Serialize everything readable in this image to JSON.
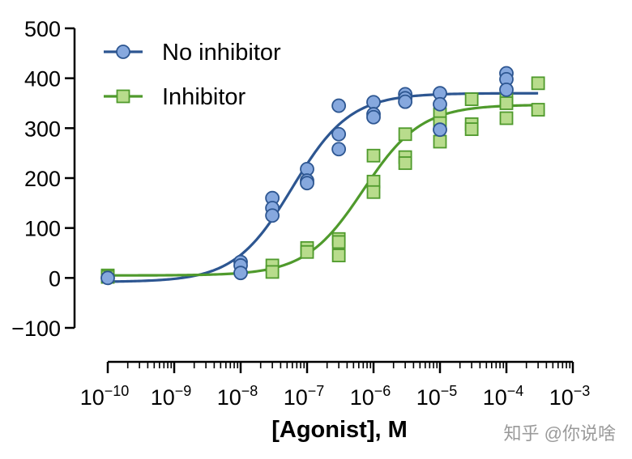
{
  "chart_data": {
    "type": "scatter",
    "xlabel": "[Agonist], M",
    "ylabel": "",
    "x_scale": "log",
    "xlim": [
      1e-10,
      0.001
    ],
    "ylim": [
      -100,
      500
    ],
    "y_ticks": [
      -100,
      0,
      100,
      200,
      300,
      400,
      500
    ],
    "x_ticks": [
      {
        "base": "10",
        "exp": "−10",
        "value": 1e-10
      },
      {
        "base": "10",
        "exp": "−9",
        "value": 1e-09
      },
      {
        "base": "10",
        "exp": "−8",
        "value": 1e-08
      },
      {
        "base": "10",
        "exp": "−7",
        "value": 1e-07
      },
      {
        "base": "10",
        "exp": "−6",
        "value": 1e-06
      },
      {
        "base": "10",
        "exp": "−5",
        "value": 1e-05
      },
      {
        "base": "10",
        "exp": "−4",
        "value": 0.0001
      },
      {
        "base": "10",
        "exp": "−3",
        "value": 0.001
      }
    ],
    "legend_position": "top-left",
    "grid": false,
    "series": [
      {
        "name": "No inhibitor",
        "marker": "circle",
        "color": "#2d5691",
        "fill": "#86a8de",
        "points": [
          {
            "x": 1e-10,
            "y": 0
          },
          {
            "x": 1e-08,
            "y": 32
          },
          {
            "x": 1e-08,
            "y": 25
          },
          {
            "x": 1e-08,
            "y": 10
          },
          {
            "x": 3e-08,
            "y": 160
          },
          {
            "x": 3e-08,
            "y": 140
          },
          {
            "x": 3e-08,
            "y": 125
          },
          {
            "x": 1e-07,
            "y": 218
          },
          {
            "x": 1e-07,
            "y": 195
          },
          {
            "x": 1e-07,
            "y": 190
          },
          {
            "x": 3e-07,
            "y": 345
          },
          {
            "x": 3e-07,
            "y": 288
          },
          {
            "x": 3e-07,
            "y": 258
          },
          {
            "x": 1e-06,
            "y": 352
          },
          {
            "x": 1e-06,
            "y": 328
          },
          {
            "x": 1e-06,
            "y": 322
          },
          {
            "x": 3e-06,
            "y": 368
          },
          {
            "x": 3e-06,
            "y": 360
          },
          {
            "x": 3e-06,
            "y": 353
          },
          {
            "x": 1e-05,
            "y": 370
          },
          {
            "x": 1e-05,
            "y": 348
          },
          {
            "x": 1e-05,
            "y": 297
          },
          {
            "x": 0.0001,
            "y": 410
          },
          {
            "x": 0.0001,
            "y": 398
          },
          {
            "x": 0.0001,
            "y": 377
          }
        ],
        "fit": {
          "bottom": -8,
          "top": 370,
          "ec50": 6e-08,
          "hill": 1
        }
      },
      {
        "name": "Inhibitor",
        "marker": "square",
        "color": "#4f9a2c",
        "fill": "#b8dc8c",
        "points": [
          {
            "x": 1e-10,
            "y": 5
          },
          {
            "x": 1e-10,
            "y": 2
          },
          {
            "x": 3e-08,
            "y": 25
          },
          {
            "x": 3e-08,
            "y": 12
          },
          {
            "x": 1e-07,
            "y": 60
          },
          {
            "x": 1e-07,
            "y": 52
          },
          {
            "x": 3e-07,
            "y": 78
          },
          {
            "x": 3e-07,
            "y": 72
          },
          {
            "x": 3e-07,
            "y": 45
          },
          {
            "x": 1e-06,
            "y": 245
          },
          {
            "x": 1e-06,
            "y": 193
          },
          {
            "x": 1e-06,
            "y": 172
          },
          {
            "x": 3e-06,
            "y": 288
          },
          {
            "x": 3e-06,
            "y": 242
          },
          {
            "x": 3e-06,
            "y": 230
          },
          {
            "x": 1e-05,
            "y": 328
          },
          {
            "x": 1e-05,
            "y": 310
          },
          {
            "x": 1e-05,
            "y": 273
          },
          {
            "x": 3e-05,
            "y": 358
          },
          {
            "x": 3e-05,
            "y": 308
          },
          {
            "x": 3e-05,
            "y": 298
          },
          {
            "x": 0.0001,
            "y": 360
          },
          {
            "x": 0.0001,
            "y": 350
          },
          {
            "x": 0.0001,
            "y": 320
          },
          {
            "x": 0.0003,
            "y": 390
          },
          {
            "x": 0.0003,
            "y": 337
          }
        ],
        "fit": {
          "bottom": 5,
          "top": 347,
          "ec50": 7e-07,
          "hill": 1
        }
      }
    ]
  },
  "watermark": "知乎 @你说啥"
}
